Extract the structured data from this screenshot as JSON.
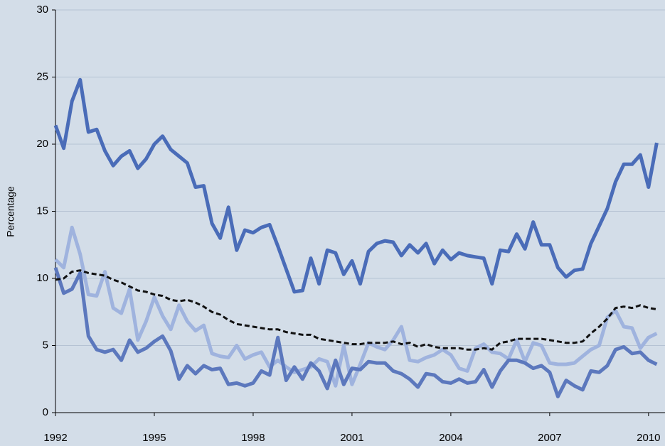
{
  "chart_data": {
    "type": "line",
    "ylabel": "Percentage",
    "x": [
      1992,
      1992.25,
      1992.5,
      1992.75,
      1993,
      1993.25,
      1993.5,
      1993.75,
      1994,
      1994.25,
      1994.5,
      1994.75,
      1995,
      1995.25,
      1995.5,
      1995.75,
      1996,
      1996.25,
      1996.5,
      1996.75,
      1997,
      1997.25,
      1997.5,
      1997.75,
      1998,
      1998.25,
      1998.5,
      1998.75,
      1999,
      1999.25,
      1999.5,
      1999.75,
      2000,
      2000.25,
      2000.5,
      2000.75,
      2001,
      2001.25,
      2001.5,
      2001.75,
      2002,
      2002.25,
      2002.5,
      2002.75,
      2003,
      2003.25,
      2003.5,
      2003.75,
      2004,
      2004.25,
      2004.5,
      2004.75,
      2005,
      2005.25,
      2005.5,
      2005.75,
      2006,
      2006.25,
      2006.5,
      2006.75,
      2007,
      2007.25,
      2007.5,
      2007.75,
      2008,
      2008.25,
      2008.5,
      2008.75,
      2009,
      2009.25,
      2009.5,
      2009.75,
      2010,
      2010.25
    ],
    "series": [
      {
        "color": "#4a6cb8",
        "dash": false,
        "values": [
          21.4,
          19.7,
          23.2,
          24.8,
          20.9,
          21.1,
          19.5,
          18.4,
          19.1,
          19.5,
          18.2,
          18.9,
          20.0,
          20.6,
          19.6,
          19.1,
          18.6,
          16.8,
          16.9,
          14.1,
          13.0,
          15.3,
          12.1,
          13.6,
          13.4,
          13.8,
          14.0,
          12.4,
          10.7,
          9.0,
          9.1,
          11.5,
          9.6,
          12.1,
          11.9,
          10.3,
          11.3,
          9.6,
          12.0,
          12.6,
          12.8,
          12.7,
          11.7,
          12.5,
          11.9,
          12.6,
          11.1,
          12.1,
          11.4,
          11.9,
          11.7,
          11.6,
          11.5,
          9.6,
          12.1,
          12.0,
          13.3,
          12.2,
          14.2,
          12.5,
          12.5,
          10.8,
          10.1,
          10.6,
          10.7,
          12.6,
          13.9,
          15.2,
          17.2,
          18.5,
          18.5,
          19.2,
          16.8,
          20.1
        ]
      },
      {
        "color": "#9fb3de",
        "dash": false,
        "values": [
          11.4,
          10.8,
          13.8,
          11.8,
          8.8,
          8.7,
          10.5,
          7.8,
          7.4,
          9.2,
          5.4,
          6.8,
          8.6,
          7.2,
          6.2,
          8.0,
          6.8,
          6.1,
          6.5,
          4.4,
          4.2,
          4.1,
          5.0,
          4.0,
          4.3,
          4.5,
          3.4,
          3.9,
          3.4,
          3.0,
          3.2,
          3.4,
          4.0,
          3.8,
          2.0,
          5.0,
          2.1,
          3.6,
          5.2,
          4.9,
          4.7,
          5.4,
          6.4,
          3.9,
          3.8,
          4.1,
          4.3,
          4.7,
          4.3,
          3.3,
          3.1,
          4.8,
          5.1,
          4.5,
          4.4,
          4.0,
          5.4,
          3.8,
          5.2,
          5.0,
          3.7,
          3.6,
          3.6,
          3.7,
          4.2,
          4.7,
          5.0,
          7.1,
          7.6,
          6.4,
          6.3,
          4.8,
          5.6,
          5.9
        ]
      },
      {
        "color": "#5c78bd",
        "dash": false,
        "values": [
          10.8,
          8.9,
          9.2,
          10.4,
          5.7,
          4.7,
          4.5,
          4.7,
          3.9,
          5.4,
          4.5,
          4.8,
          5.3,
          5.7,
          4.6,
          2.5,
          3.5,
          2.9,
          3.5,
          3.2,
          3.3,
          2.1,
          2.2,
          2.0,
          2.2,
          3.1,
          2.8,
          5.6,
          2.4,
          3.4,
          2.5,
          3.7,
          3.1,
          1.8,
          3.9,
          2.1,
          3.3,
          3.2,
          3.8,
          3.7,
          3.7,
          3.1,
          2.9,
          2.5,
          1.9,
          2.9,
          2.8,
          2.3,
          2.2,
          2.5,
          2.2,
          2.3,
          3.2,
          1.9,
          3.1,
          3.9,
          3.9,
          3.7,
          3.3,
          3.5,
          3.0,
          1.2,
          2.4,
          2.0,
          1.7,
          3.1,
          3.0,
          3.5,
          4.7,
          4.9,
          4.4,
          4.5,
          3.9,
          3.6
        ]
      },
      {
        "color": "#111111",
        "dash": true,
        "values": [
          9.9,
          10.0,
          10.5,
          10.6,
          10.4,
          10.3,
          10.2,
          9.9,
          9.7,
          9.4,
          9.1,
          9.0,
          8.8,
          8.7,
          8.4,
          8.3,
          8.4,
          8.2,
          7.9,
          7.5,
          7.3,
          6.9,
          6.6,
          6.5,
          6.4,
          6.3,
          6.2,
          6.2,
          6.0,
          5.9,
          5.8,
          5.8,
          5.5,
          5.4,
          5.3,
          5.2,
          5.1,
          5.1,
          5.2,
          5.2,
          5.2,
          5.3,
          5.1,
          5.2,
          4.9,
          5.1,
          4.9,
          4.8,
          4.8,
          4.8,
          4.7,
          4.7,
          4.8,
          4.7,
          5.2,
          5.3,
          5.5,
          5.5,
          5.5,
          5.5,
          5.4,
          5.3,
          5.2,
          5.2,
          5.3,
          5.9,
          6.4,
          7.0,
          7.8,
          7.9,
          7.8,
          8.0,
          7.8,
          7.7
        ]
      }
    ],
    "xlim": [
      1992,
      2010.5
    ],
    "xticks": [
      1992,
      1995,
      1998,
      2001,
      2004,
      2007,
      2010
    ],
    "ylim": [
      0,
      30
    ],
    "yticks": [
      0,
      5,
      10,
      15,
      20,
      25,
      30
    ],
    "grid": true
  }
}
